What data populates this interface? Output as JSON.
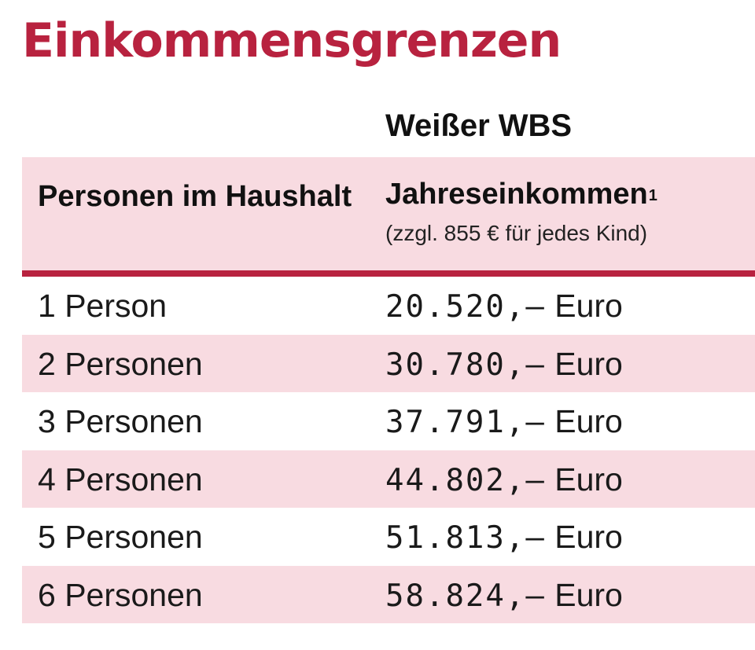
{
  "title": "Einkommensgrenzen",
  "subheader": "Weißer WBS",
  "table": {
    "head": {
      "col1": "Personen im Haushalt",
      "col2": "Jahreseinkommen",
      "col2_footnote_mark": "1",
      "col2_note": "(zzgl. 855 € für jedes Kind)"
    },
    "rows": [
      {
        "persons": "1 Person",
        "amount": "20.520,–",
        "unit": "Euro"
      },
      {
        "persons": "2 Personen",
        "amount": "30.780,–",
        "unit": "Euro"
      },
      {
        "persons": "3 Personen",
        "amount": "37.791,–",
        "unit": "Euro"
      },
      {
        "persons": "4 Personen",
        "amount": "44.802,–",
        "unit": "Euro"
      },
      {
        "persons": "5 Personen",
        "amount": "51.813,–",
        "unit": "Euro"
      },
      {
        "persons": "6 Personen",
        "amount": "58.824,–",
        "unit": "Euro"
      }
    ]
  },
  "colors": {
    "accent": "#b8223f",
    "row_tint": "#f8dbe1"
  }
}
